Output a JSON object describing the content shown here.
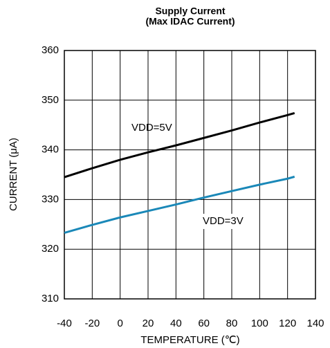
{
  "chart_data": {
    "type": "line",
    "title": "Supply Current",
    "subtitle": "(Max IDAC Current)",
    "x_label": "TEMPERATURE (℃)",
    "y_label": "CURRENT (μA)",
    "x": [
      -40,
      -20,
      0,
      20,
      40,
      60,
      80,
      100,
      120,
      125
    ],
    "series": [
      {
        "name": "VDD=5V",
        "color": "#000000",
        "values": [
          334.5,
          336.3,
          338.0,
          339.5,
          340.9,
          342.4,
          343.9,
          345.5,
          347.0,
          347.4
        ]
      },
      {
        "name": "VDD=3V",
        "color": "#1a88b8",
        "values": [
          323.3,
          324.9,
          326.4,
          327.7,
          329.0,
          330.4,
          331.7,
          333.0,
          334.2,
          334.6
        ]
      }
    ],
    "xlim": [
      -40,
      140
    ],
    "xticks": [
      -40,
      -20,
      0,
      20,
      40,
      60,
      80,
      100,
      120,
      140
    ],
    "ylim": [
      310,
      360
    ],
    "yticks": [
      310,
      320,
      330,
      340,
      350,
      360
    ],
    "grid": true
  }
}
